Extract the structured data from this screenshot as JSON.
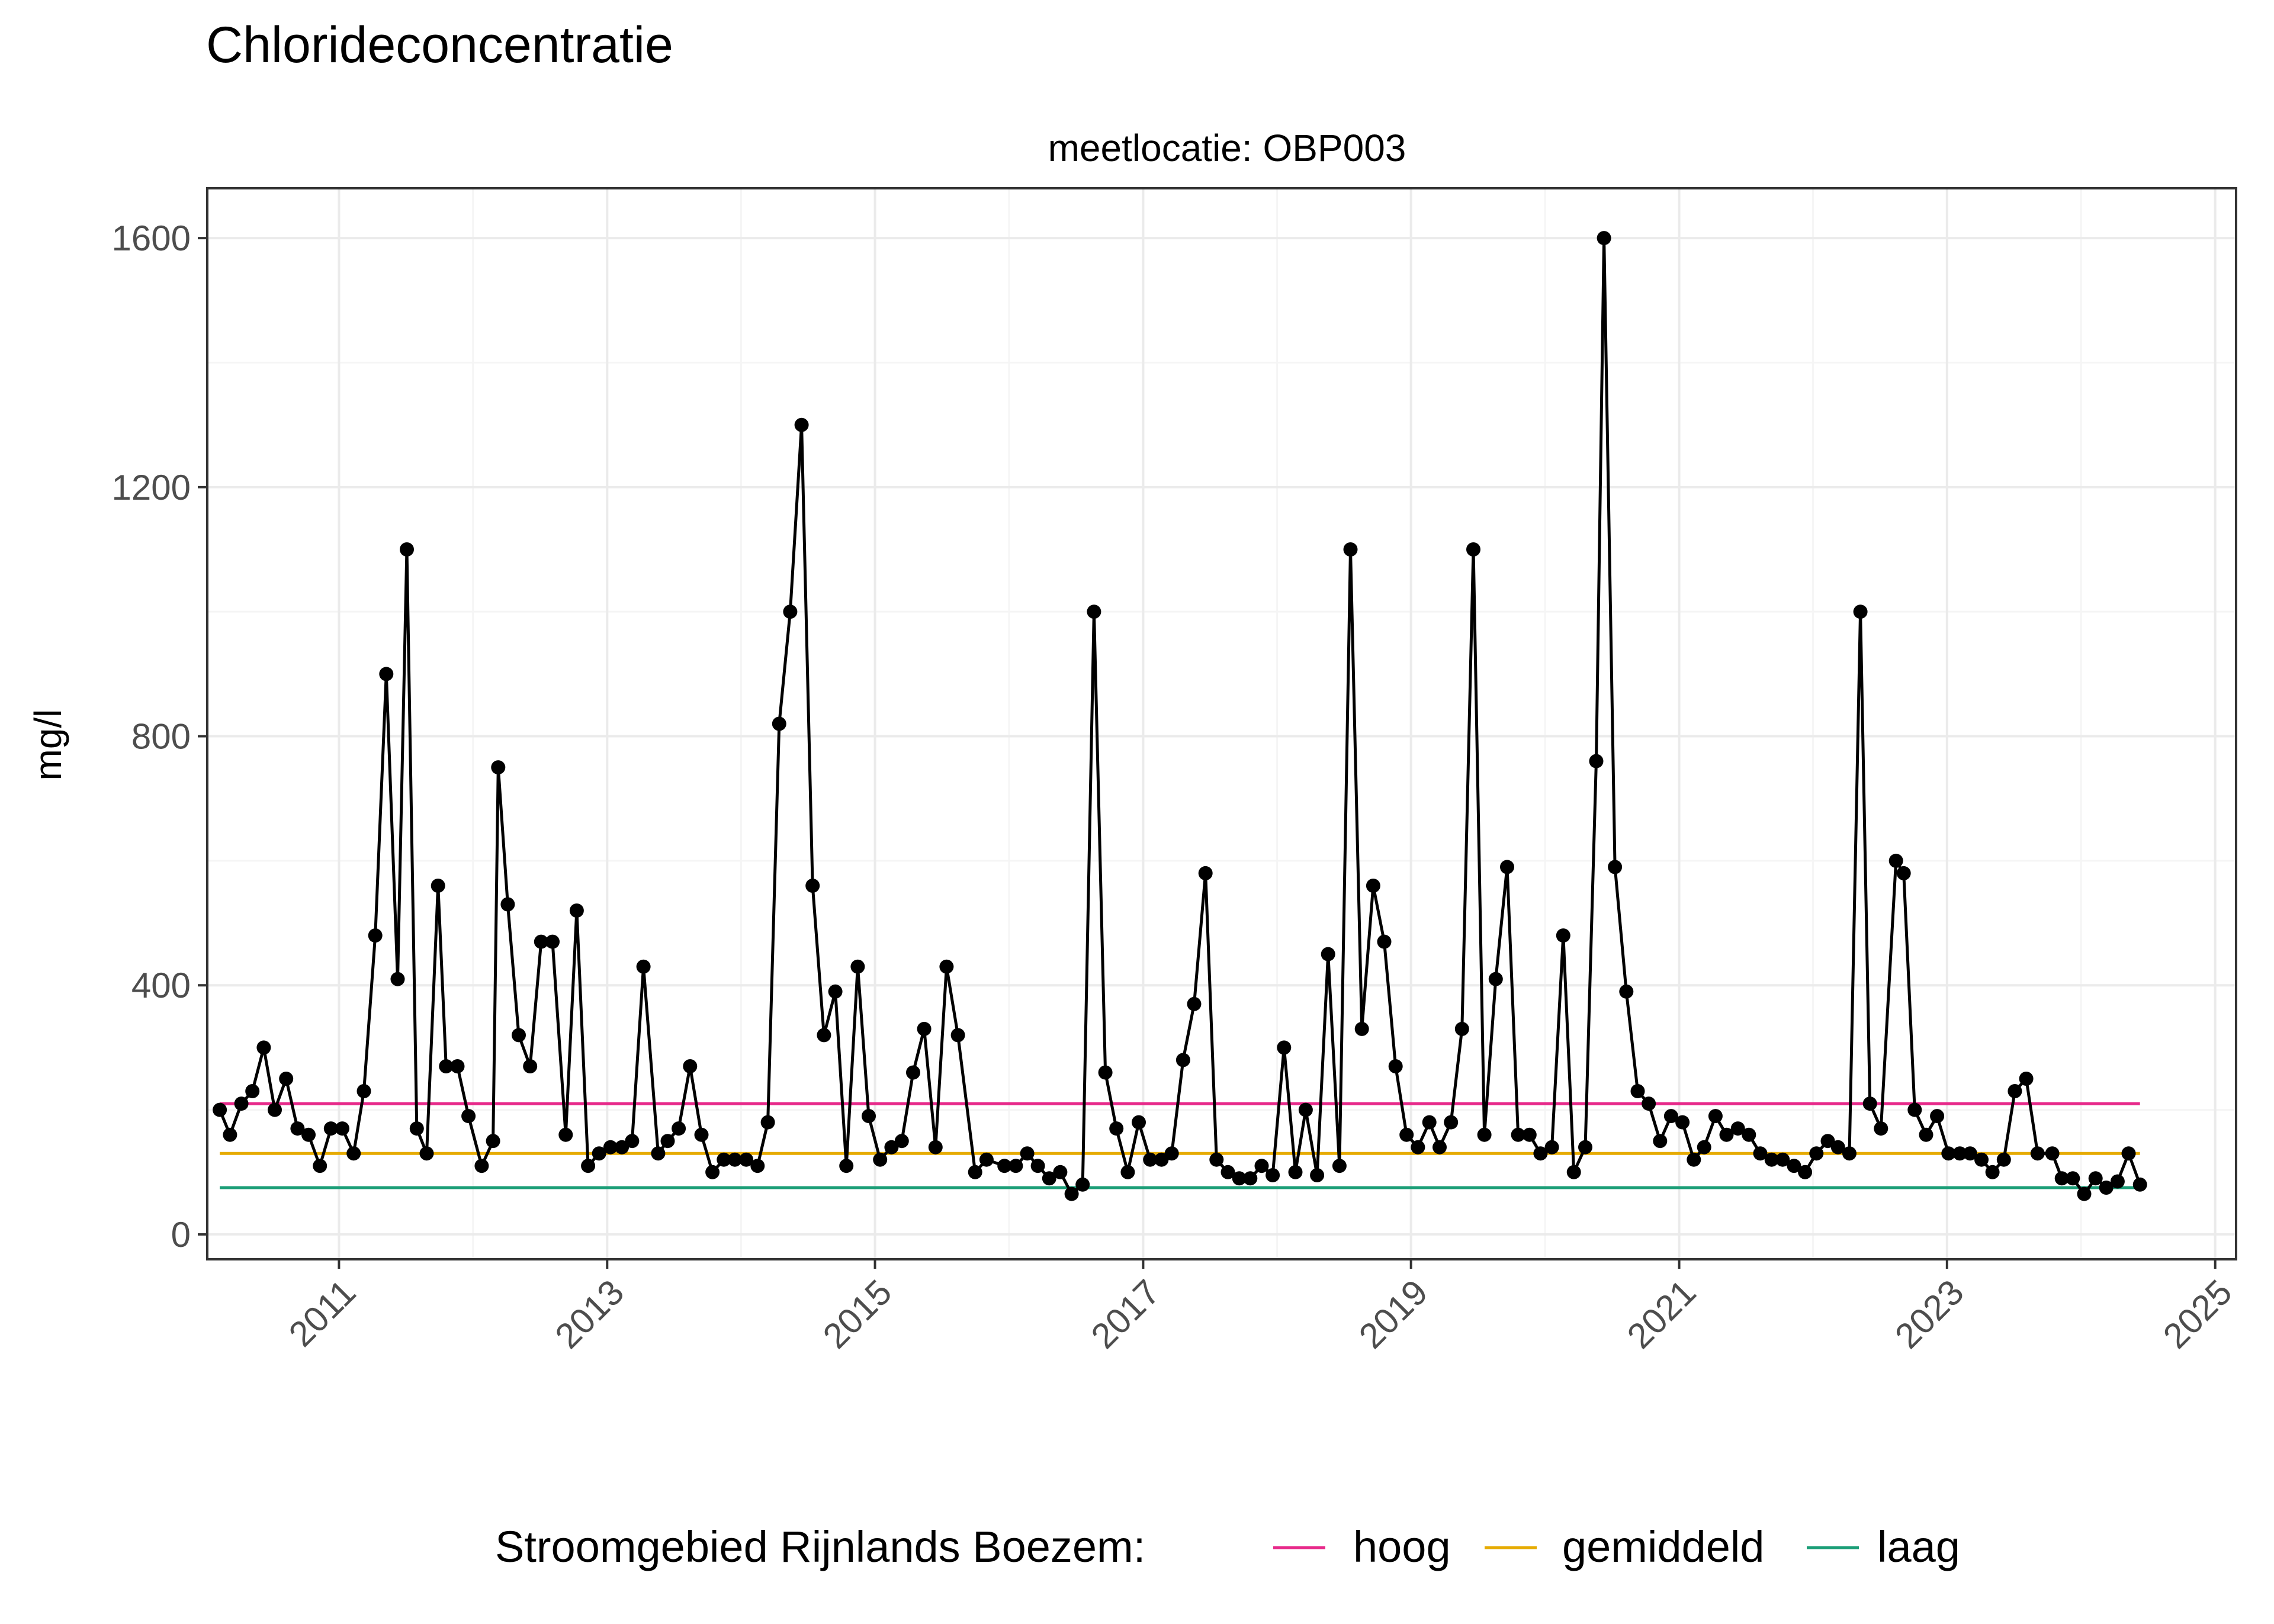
{
  "chart_data": {
    "type": "line",
    "title": "Chlorideconcentratie",
    "subtitle": "meetlocatie: OBP003",
    "xlabel": "",
    "ylabel": "mg/l",
    "x_type": "date",
    "xlim": [
      "2010-01-07",
      "2025-02-27"
    ],
    "ylim": [
      -40,
      1680
    ],
    "x_ticks": [
      "2011-01-01",
      "2013-01-01",
      "2015-01-01",
      "2017-01-01",
      "2019-01-01",
      "2021-01-01",
      "2023-01-01",
      "2025-01-01"
    ],
    "x_tick_labels": [
      "2011",
      "2013",
      "2015",
      "2017",
      "2019",
      "2021",
      "2023",
      "2025"
    ],
    "y_ticks": [
      0,
      400,
      800,
      1200,
      1600
    ],
    "y_tick_labels": [
      "0",
      "400",
      "800",
      "1200",
      "1600"
    ],
    "grid": true,
    "legend_position": "bottom",
    "legend_title": "Stroomgebied Rijnlands Boezem:",
    "series": [
      {
        "role": "measurements",
        "color": "#000000",
        "points": [
          [
            "2010-02-10",
            200
          ],
          [
            "2010-03-10",
            160
          ],
          [
            "2010-04-10",
            210
          ],
          [
            "2010-05-10",
            230
          ],
          [
            "2010-06-10",
            300
          ],
          [
            "2010-07-10",
            200
          ],
          [
            "2010-08-10",
            250
          ],
          [
            "2010-09-10",
            170
          ],
          [
            "2010-10-10",
            160
          ],
          [
            "2010-11-10",
            110
          ],
          [
            "2010-12-10",
            170
          ],
          [
            "2011-01-10",
            170
          ],
          [
            "2011-02-10",
            130
          ],
          [
            "2011-03-10",
            230
          ],
          [
            "2011-04-10",
            480
          ],
          [
            "2011-05-10",
            900
          ],
          [
            "2011-06-10",
            410
          ],
          [
            "2011-07-05",
            1100
          ],
          [
            "2011-08-01",
            170
          ],
          [
            "2011-08-28",
            130
          ],
          [
            "2011-09-28",
            560
          ],
          [
            "2011-10-20",
            270
          ],
          [
            "2011-11-20",
            270
          ],
          [
            "2011-12-20",
            190
          ],
          [
            "2012-01-25",
            110
          ],
          [
            "2012-02-25",
            150
          ],
          [
            "2012-03-10",
            750
          ],
          [
            "2012-04-05",
            530
          ],
          [
            "2012-05-05",
            320
          ],
          [
            "2012-06-05",
            270
          ],
          [
            "2012-07-05",
            470
          ],
          [
            "2012-08-05",
            470
          ],
          [
            "2012-09-10",
            160
          ],
          [
            "2012-10-10",
            520
          ],
          [
            "2012-11-10",
            110
          ],
          [
            "2012-12-10",
            130
          ],
          [
            "2013-01-10",
            140
          ],
          [
            "2013-02-10",
            140
          ],
          [
            "2013-03-10",
            150
          ],
          [
            "2013-04-10",
            430
          ],
          [
            "2013-05-20",
            130
          ],
          [
            "2013-06-15",
            150
          ],
          [
            "2013-07-15",
            170
          ],
          [
            "2013-08-15",
            270
          ],
          [
            "2013-09-15",
            160
          ],
          [
            "2013-10-15",
            100
          ],
          [
            "2013-11-15",
            120
          ],
          [
            "2013-12-15",
            120
          ],
          [
            "2014-01-15",
            120
          ],
          [
            "2014-02-15",
            110
          ],
          [
            "2014-03-15",
            180
          ],
          [
            "2014-04-15",
            820
          ],
          [
            "2014-05-15",
            1000
          ],
          [
            "2014-06-15",
            1300
          ],
          [
            "2014-07-15",
            560
          ],
          [
            "2014-08-15",
            320
          ],
          [
            "2014-09-15",
            390
          ],
          [
            "2014-10-15",
            110
          ],
          [
            "2014-11-15",
            430
          ],
          [
            "2014-12-15",
            190
          ],
          [
            "2015-01-15",
            120
          ],
          [
            "2015-02-15",
            140
          ],
          [
            "2015-03-15",
            150
          ],
          [
            "2015-04-15",
            260
          ],
          [
            "2015-05-15",
            330
          ],
          [
            "2015-06-15",
            140
          ],
          [
            "2015-07-15",
            430
          ],
          [
            "2015-08-15",
            320
          ],
          [
            "2015-10-01",
            100
          ],
          [
            "2015-11-01",
            120
          ],
          [
            "2015-12-20",
            110
          ],
          [
            "2016-01-20",
            110
          ],
          [
            "2016-02-20",
            130
          ],
          [
            "2016-03-20",
            110
          ],
          [
            "2016-04-20",
            90
          ],
          [
            "2016-05-20",
            100
          ],
          [
            "2016-06-20",
            65
          ],
          [
            "2016-07-20",
            80
          ],
          [
            "2016-08-20",
            1000
          ],
          [
            "2016-09-20",
            260
          ],
          [
            "2016-10-20",
            170
          ],
          [
            "2016-11-20",
            100
          ],
          [
            "2016-12-20",
            180
          ],
          [
            "2017-01-20",
            120
          ],
          [
            "2017-02-20",
            120
          ],
          [
            "2017-03-20",
            130
          ],
          [
            "2017-04-20",
            280
          ],
          [
            "2017-05-20",
            370
          ],
          [
            "2017-06-20",
            580
          ],
          [
            "2017-07-20",
            120
          ],
          [
            "2017-08-20",
            100
          ],
          [
            "2017-09-20",
            90
          ],
          [
            "2017-10-20",
            90
          ],
          [
            "2017-11-20",
            110
          ],
          [
            "2017-12-20",
            95
          ],
          [
            "2018-01-20",
            300
          ],
          [
            "2018-02-20",
            100
          ],
          [
            "2018-03-20",
            200
          ],
          [
            "2018-04-20",
            95
          ],
          [
            "2018-05-20",
            450
          ],
          [
            "2018-06-20",
            110
          ],
          [
            "2018-07-20",
            1100
          ],
          [
            "2018-08-20",
            330
          ],
          [
            "2018-09-20",
            560
          ],
          [
            "2018-10-20",
            470
          ],
          [
            "2018-11-20",
            270
          ],
          [
            "2018-12-20",
            160
          ],
          [
            "2019-01-20",
            140
          ],
          [
            "2019-02-20",
            180
          ],
          [
            "2019-03-20",
            140
          ],
          [
            "2019-04-20",
            180
          ],
          [
            "2019-05-20",
            330
          ],
          [
            "2019-06-20",
            1100
          ],
          [
            "2019-07-20",
            160
          ],
          [
            "2019-08-20",
            410
          ],
          [
            "2019-09-20",
            590
          ],
          [
            "2019-10-20",
            160
          ],
          [
            "2019-11-20",
            160
          ],
          [
            "2019-12-20",
            130
          ],
          [
            "2020-01-20",
            140
          ],
          [
            "2020-02-20",
            480
          ],
          [
            "2020-03-20",
            100
          ],
          [
            "2020-04-20",
            140
          ],
          [
            "2020-05-20",
            760
          ],
          [
            "2020-06-10",
            1600
          ],
          [
            "2020-07-10",
            590
          ],
          [
            "2020-08-10",
            390
          ],
          [
            "2020-09-10",
            230
          ],
          [
            "2020-10-10",
            210
          ],
          [
            "2020-11-10",
            150
          ],
          [
            "2020-12-10",
            190
          ],
          [
            "2021-01-10",
            180
          ],
          [
            "2021-02-10",
            120
          ],
          [
            "2021-03-10",
            140
          ],
          [
            "2021-04-10",
            190
          ],
          [
            "2021-05-10",
            160
          ],
          [
            "2021-06-10",
            170
          ],
          [
            "2021-07-10",
            160
          ],
          [
            "2021-08-10",
            130
          ],
          [
            "2021-09-10",
            120
          ],
          [
            "2021-10-10",
            120
          ],
          [
            "2021-11-10",
            110
          ],
          [
            "2021-12-10",
            100
          ],
          [
            "2022-01-10",
            130
          ],
          [
            "2022-02-10",
            150
          ],
          [
            "2022-03-10",
            140
          ],
          [
            "2022-04-10",
            130
          ],
          [
            "2022-05-10",
            1000
          ],
          [
            "2022-06-05",
            210
          ],
          [
            "2022-07-05",
            170
          ],
          [
            "2022-08-15",
            600
          ],
          [
            "2022-09-05",
            580
          ],
          [
            "2022-10-05",
            200
          ],
          [
            "2022-11-05",
            160
          ],
          [
            "2022-12-05",
            190
          ],
          [
            "2023-01-05",
            130
          ],
          [
            "2023-02-05",
            130
          ],
          [
            "2023-03-05",
            130
          ],
          [
            "2023-04-05",
            120
          ],
          [
            "2023-05-05",
            100
          ],
          [
            "2023-06-05",
            120
          ],
          [
            "2023-07-05",
            230
          ],
          [
            "2023-08-05",
            250
          ],
          [
            "2023-09-05",
            130
          ],
          [
            "2023-10-15",
            130
          ],
          [
            "2023-11-10",
            90
          ],
          [
            "2023-12-10",
            90
          ],
          [
            "2024-01-10",
            65
          ],
          [
            "2024-02-10",
            90
          ],
          [
            "2024-03-10",
            75
          ],
          [
            "2024-04-10",
            85
          ],
          [
            "2024-05-10",
            130
          ],
          [
            "2024-06-10",
            80
          ]
        ]
      }
    ],
    "reference_lines": [
      {
        "name": "hoog",
        "value": 210,
        "color": "#e7298a",
        "x_start": "2010-02-10",
        "x_end": "2024-06-10"
      },
      {
        "name": "gemiddeld",
        "value": 130,
        "color": "#e6ab02",
        "x_start": "2010-02-10",
        "x_end": "2024-06-10"
      },
      {
        "name": "laag",
        "value": 75,
        "color": "#1b9e77",
        "x_start": "2010-02-10",
        "x_end": "2024-06-10"
      }
    ]
  },
  "colors": {
    "panel_border": "#333333",
    "grid_major": "#ebebeb",
    "grid_minor": "#f5f5f5",
    "tick_text": "#4d4d4d",
    "text": "#000000"
  }
}
